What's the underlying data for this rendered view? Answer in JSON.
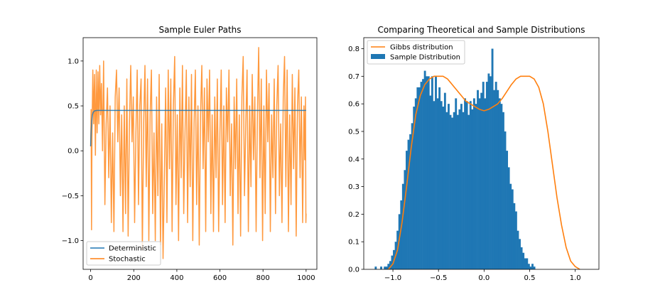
{
  "chart_data": [
    {
      "type": "line",
      "title": "Sample Euler Paths",
      "xlabel": "",
      "ylabel": "",
      "xlim": [
        -35,
        1050
      ],
      "ylim": [
        -1.32,
        1.26
      ],
      "xticks": [
        0,
        200,
        400,
        600,
        800,
        1000
      ],
      "yticks": [
        -1.0,
        -0.5,
        0.0,
        0.5,
        1.0
      ],
      "xtick_labels": [
        "0",
        "200",
        "400",
        "600",
        "800",
        "1000"
      ],
      "ytick_labels": [
        "−1.0",
        "−0.5",
        "0.0",
        "0.5",
        "1.0"
      ],
      "legend_position": "lower-left",
      "series": [
        {
          "name": "Deterministic",
          "color": "#1f77b4",
          "points": [
            [
              0,
              0.05
            ],
            [
              2,
              0.2
            ],
            [
              5,
              0.33
            ],
            [
              8,
              0.4
            ],
            [
              12,
              0.43
            ],
            [
              18,
              0.445
            ],
            [
              30,
              0.45
            ],
            [
              1000,
              0.45
            ]
          ]
        },
        {
          "name": "Stochastic",
          "color": "#ff7f0e",
          "points": [
            [
              0,
              0.05
            ],
            [
              2,
              0.46
            ],
            [
              4,
              -0.88
            ],
            [
              6,
              0.15
            ],
            [
              10,
              0.9
            ],
            [
              14,
              0.3
            ],
            [
              18,
              0.85
            ],
            [
              22,
              -0.05
            ],
            [
              26,
              0.9
            ],
            [
              30,
              0.2
            ],
            [
              34,
              0.88
            ],
            [
              38,
              0.3
            ],
            [
              42,
              0.95
            ],
            [
              46,
              0.4
            ],
            [
              50,
              0.75
            ],
            [
              55,
              0.0
            ],
            [
              60,
              1.0
            ],
            [
              66,
              -0.6
            ],
            [
              72,
              0.3
            ],
            [
              78,
              0.7
            ],
            [
              84,
              -0.3
            ],
            [
              90,
              0.5
            ],
            [
              96,
              -0.8
            ],
            [
              102,
              0.2
            ],
            [
              108,
              -0.9
            ],
            [
              114,
              0.6
            ],
            [
              120,
              0.9
            ],
            [
              126,
              0.1
            ],
            [
              132,
              0.7
            ],
            [
              138,
              -0.5
            ],
            [
              144,
              0.4
            ],
            [
              150,
              -0.9
            ],
            [
              156,
              0.5
            ],
            [
              162,
              -0.7
            ],
            [
              168,
              0.8
            ],
            [
              174,
              -0.95
            ],
            [
              180,
              0.3
            ],
            [
              186,
              0.95
            ],
            [
              192,
              0.1
            ],
            [
              198,
              0.6
            ],
            [
              204,
              -0.8
            ],
            [
              210,
              0.2
            ],
            [
              216,
              0.9
            ],
            [
              222,
              -0.6
            ],
            [
              228,
              0.5
            ],
            [
              234,
              0.8
            ],
            [
              240,
              -1.1
            ],
            [
              246,
              0.3
            ],
            [
              252,
              0.95
            ],
            [
              258,
              -0.4
            ],
            [
              264,
              0.8
            ],
            [
              270,
              -1.0
            ],
            [
              276,
              0.4
            ],
            [
              282,
              0.9
            ],
            [
              288,
              -0.7
            ],
            [
              294,
              0.2
            ],
            [
              300,
              -1.0
            ],
            [
              306,
              0.6
            ],
            [
              312,
              -0.5
            ],
            [
              318,
              0.85
            ],
            [
              324,
              -1.05
            ],
            [
              330,
              0.3
            ],
            [
              336,
              -1.2
            ],
            [
              342,
              -0.3
            ],
            [
              348,
              0.7
            ],
            [
              354,
              -0.8
            ],
            [
              360,
              0.9
            ],
            [
              366,
              -0.2
            ],
            [
              372,
              0.8
            ],
            [
              378,
              -0.9
            ],
            [
              384,
              0.5
            ],
            [
              390,
              1.05
            ],
            [
              396,
              -0.6
            ],
            [
              402,
              0.4
            ],
            [
              408,
              -1.0
            ],
            [
              414,
              0.7
            ],
            [
              420,
              -0.3
            ],
            [
              426,
              0.95
            ],
            [
              432,
              -0.7
            ],
            [
              438,
              0.2
            ],
            [
              444,
              0.9
            ],
            [
              450,
              -0.8
            ],
            [
              456,
              0.6
            ],
            [
              462,
              -0.4
            ],
            [
              468,
              0.85
            ],
            [
              474,
              -1.0
            ],
            [
              480,
              0.3
            ],
            [
              486,
              0.9
            ],
            [
              492,
              -0.6
            ],
            [
              498,
              0.5
            ],
            [
              504,
              -1.05
            ],
            [
              510,
              0.4
            ],
            [
              516,
              0.95
            ],
            [
              522,
              -0.2
            ],
            [
              528,
              0.7
            ],
            [
              534,
              -0.9
            ],
            [
              540,
              0.8
            ],
            [
              546,
              0.1
            ],
            [
              552,
              0.9
            ],
            [
              558,
              -0.7
            ],
            [
              564,
              0.4
            ],
            [
              570,
              -0.9
            ],
            [
              576,
              0.6
            ],
            [
              582,
              -0.3
            ],
            [
              588,
              0.8
            ],
            [
              594,
              -0.9
            ],
            [
              600,
              0.2
            ],
            [
              606,
              0.9
            ],
            [
              612,
              -0.6
            ],
            [
              618,
              0.5
            ],
            [
              624,
              -0.8
            ],
            [
              630,
              0.7
            ],
            [
              636,
              0.1
            ],
            [
              642,
              0.9
            ],
            [
              648,
              -0.5
            ],
            [
              654,
              0.3
            ],
            [
              660,
              -1.05
            ],
            [
              666,
              0.6
            ],
            [
              672,
              -0.2
            ],
            [
              678,
              0.8
            ],
            [
              684,
              -0.7
            ],
            [
              690,
              0.4
            ],
            [
              696,
              -0.95
            ],
            [
              702,
              0.6
            ],
            [
              708,
              1.05
            ],
            [
              714,
              -0.5
            ],
            [
              720,
              0.3
            ],
            [
              726,
              0.9
            ],
            [
              732,
              -0.9
            ],
            [
              738,
              0.5
            ],
            [
              744,
              -0.4
            ],
            [
              750,
              0.85
            ],
            [
              756,
              -0.1
            ],
            [
              762,
              0.6
            ],
            [
              768,
              -0.9
            ],
            [
              774,
              0.4
            ],
            [
              780,
              1.15
            ],
            [
              786,
              -0.3
            ],
            [
              792,
              0.8
            ],
            [
              798,
              -1.0
            ],
            [
              804,
              0.5
            ],
            [
              810,
              -0.7
            ],
            [
              816,
              0.9
            ],
            [
              822,
              0.1
            ],
            [
              828,
              0.75
            ],
            [
              834,
              -0.9
            ],
            [
              840,
              0.4
            ],
            [
              846,
              -0.3
            ],
            [
              852,
              0.8
            ],
            [
              858,
              -0.7
            ],
            [
              864,
              0.5
            ],
            [
              870,
              0.95
            ],
            [
              876,
              -0.5
            ],
            [
              882,
              0.3
            ],
            [
              888,
              -0.8
            ],
            [
              894,
              0.6
            ],
            [
              900,
              1.05
            ],
            [
              906,
              -0.4
            ],
            [
              912,
              0.9
            ],
            [
              918,
              -0.9
            ],
            [
              924,
              0.4
            ],
            [
              930,
              -0.6
            ],
            [
              936,
              0.85
            ],
            [
              942,
              -0.2
            ],
            [
              948,
              0.7
            ],
            [
              954,
              -0.95
            ],
            [
              960,
              0.5
            ],
            [
              966,
              0.9
            ],
            [
              972,
              -0.3
            ],
            [
              978,
              0.6
            ],
            [
              984,
              -0.8
            ],
            [
              990,
              0.5
            ],
            [
              994,
              -0.1
            ],
            [
              997,
              0.6
            ],
            [
              999,
              -0.8
            ],
            [
              1000,
              -0.7
            ]
          ]
        }
      ]
    },
    {
      "type": "bar",
      "title": "Comparing Theoretical and Sample Distributions",
      "xlabel": "",
      "ylabel": "",
      "xlim": [
        -1.32,
        1.26
      ],
      "ylim": [
        0,
        0.84
      ],
      "xticks": [
        -1.0,
        -0.5,
        0.0,
        0.5,
        1.0
      ],
      "yticks": [
        0.0,
        0.1,
        0.2,
        0.3,
        0.4,
        0.5,
        0.6,
        0.7,
        0.8
      ],
      "xtick_labels": [
        "−1.0",
        "−0.5",
        "0.0",
        "0.5",
        "1.0"
      ],
      "ytick_labels": [
        "0.0",
        "0.1",
        "0.2",
        "0.3",
        "0.4",
        "0.5",
        "0.6",
        "0.7",
        "0.8"
      ],
      "legend_position": "upper-left",
      "histogram": {
        "name": "Sample Distribution",
        "color": "#1f77b4",
        "bin_start": -1.2,
        "bin_width": 0.02,
        "values": [
          0.01,
          0.0,
          0.0,
          0.01,
          0.0,
          0.01,
          0.01,
          0.02,
          0.03,
          0.05,
          0.07,
          0.1,
          0.14,
          0.2,
          0.25,
          0.31,
          0.36,
          0.43,
          0.47,
          0.49,
          0.53,
          0.59,
          0.62,
          0.66,
          0.66,
          0.68,
          0.69,
          0.72,
          0.7,
          0.7,
          0.63,
          0.7,
          0.61,
          0.7,
          0.62,
          0.66,
          0.61,
          0.59,
          0.64,
          0.57,
          0.6,
          0.56,
          0.55,
          0.57,
          0.62,
          0.56,
          0.58,
          0.6,
          0.57,
          0.62,
          0.61,
          0.56,
          0.61,
          0.58,
          0.62,
          0.6,
          0.65,
          0.62,
          0.64,
          0.68,
          0.62,
          0.68,
          0.71,
          0.7,
          0.8,
          0.65,
          0.68,
          0.65,
          0.62,
          0.6,
          0.57,
          0.5,
          0.43,
          0.37,
          0.31,
          0.29,
          0.24,
          0.21,
          0.14,
          0.11,
          0.08,
          0.06,
          0.04,
          0.04,
          0.02,
          0.01,
          0.02,
          0.01
        ]
      },
      "series": [
        {
          "name": "Gibbs distribution",
          "color": "#ff7f0e",
          "points": [
            [
              -1.05,
              0.0
            ],
            [
              -1.0,
              0.02
            ],
            [
              -0.95,
              0.07
            ],
            [
              -0.9,
              0.17
            ],
            [
              -0.85,
              0.3
            ],
            [
              -0.8,
              0.44
            ],
            [
              -0.75,
              0.56
            ],
            [
              -0.7,
              0.63
            ],
            [
              -0.65,
              0.67
            ],
            [
              -0.6,
              0.69
            ],
            [
              -0.55,
              0.7
            ],
            [
              -0.5,
              0.7
            ],
            [
              -0.45,
              0.7
            ],
            [
              -0.4,
              0.69
            ],
            [
              -0.35,
              0.67
            ],
            [
              -0.3,
              0.65
            ],
            [
              -0.25,
              0.63
            ],
            [
              -0.2,
              0.61
            ],
            [
              -0.15,
              0.6
            ],
            [
              -0.1,
              0.59
            ],
            [
              -0.05,
              0.58
            ],
            [
              0.0,
              0.575
            ],
            [
              0.05,
              0.58
            ],
            [
              0.1,
              0.59
            ],
            [
              0.15,
              0.6
            ],
            [
              0.2,
              0.62
            ],
            [
              0.25,
              0.645
            ],
            [
              0.3,
              0.67
            ],
            [
              0.35,
              0.69
            ],
            [
              0.4,
              0.7
            ],
            [
              0.45,
              0.7
            ],
            [
              0.5,
              0.7
            ],
            [
              0.55,
              0.69
            ],
            [
              0.6,
              0.66
            ],
            [
              0.65,
              0.6
            ],
            [
              0.7,
              0.5
            ],
            [
              0.75,
              0.38
            ],
            [
              0.8,
              0.26
            ],
            [
              0.85,
              0.16
            ],
            [
              0.9,
              0.08
            ],
            [
              0.95,
              0.03
            ],
            [
              1.0,
              0.01
            ],
            [
              1.05,
              0.0
            ]
          ]
        }
      ]
    }
  ]
}
